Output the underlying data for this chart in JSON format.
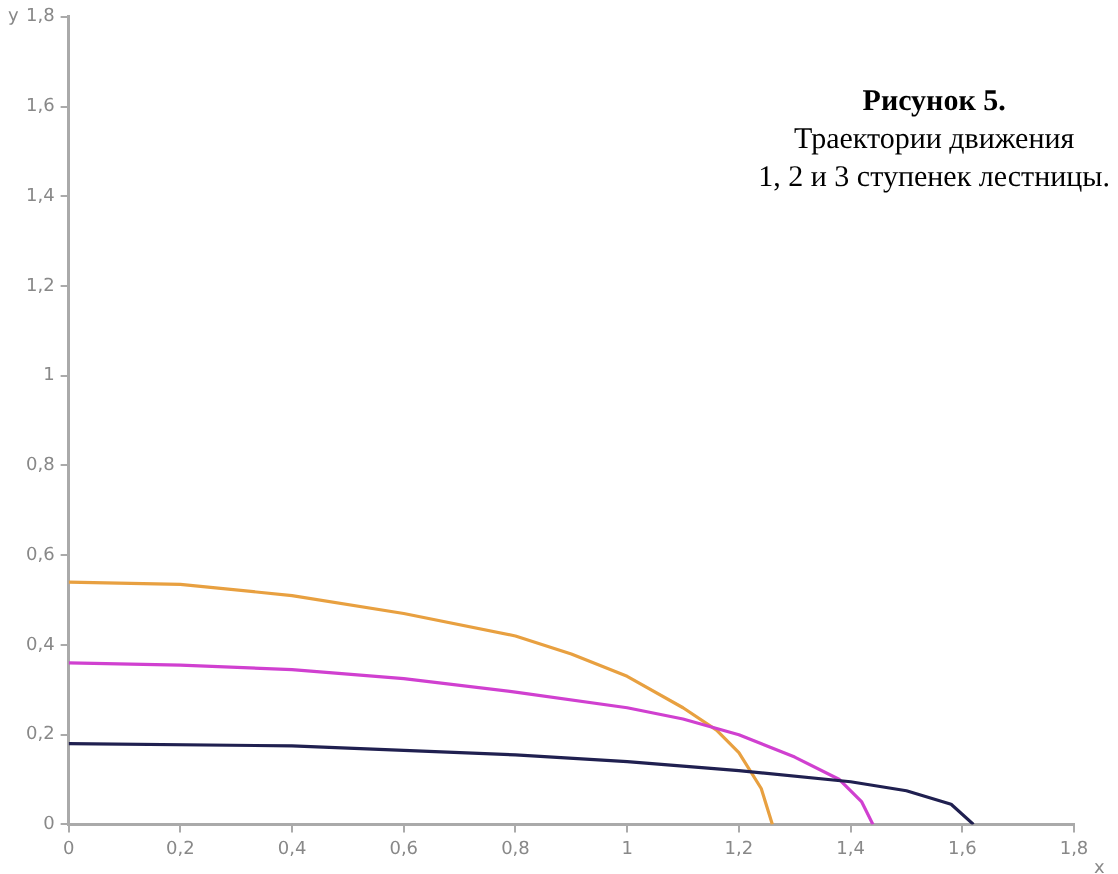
{
  "chart_data": {
    "type": "line",
    "title": "Рисунок 5.",
    "subtitle": "Траектории движения\n1, 2 и 3 ступенек лестницы.",
    "xlabel": "x",
    "ylabel": "y",
    "xlim": [
      0,
      1.8
    ],
    "ylim": [
      0,
      1.8
    ],
    "xticks": [
      0,
      {
        "value": 0.2,
        "label": "0,2"
      },
      {
        "value": 0.4,
        "label": "0,4"
      },
      {
        "value": 0.6,
        "label": "0,6"
      },
      {
        "value": 0.8,
        "label": "0,8"
      },
      1,
      {
        "value": 1.2,
        "label": "1,2"
      },
      {
        "value": 1.4,
        "label": "1,4"
      },
      {
        "value": 1.6,
        "label": "1,6"
      },
      {
        "value": 1.8,
        "label": "1,8"
      }
    ],
    "yticks": [
      0,
      {
        "value": 0.2,
        "label": "0,2"
      },
      {
        "value": 0.4,
        "label": "0,4"
      },
      {
        "value": 0.6,
        "label": "0,6"
      },
      {
        "value": 0.8,
        "label": "0,8"
      },
      1,
      {
        "value": 1.2,
        "label": "1,2"
      },
      {
        "value": 1.4,
        "label": "1,4"
      },
      {
        "value": 1.6,
        "label": "1,6"
      },
      {
        "value": 1.8,
        "label": "1,8"
      }
    ],
    "grid": false,
    "legend": false,
    "marker": "none",
    "line_style": "solid",
    "series": [
      {
        "color": "#202050",
        "x": [
          0,
          0.4,
          0.6,
          0.8,
          1.0,
          1.2,
          1.4,
          1.5,
          1.58,
          1.62
        ],
        "values": [
          0.18,
          0.175,
          0.165,
          0.155,
          0.14,
          0.12,
          0.095,
          0.075,
          0.045,
          0
        ]
      },
      {
        "color": "#d040d0",
        "x": [
          0,
          0.2,
          0.4,
          0.6,
          0.8,
          1.0,
          1.1,
          1.2,
          1.3,
          1.38,
          1.42,
          1.44
        ],
        "values": [
          0.36,
          0.355,
          0.345,
          0.325,
          0.295,
          0.26,
          0.235,
          0.2,
          0.15,
          0.1,
          0.05,
          0
        ]
      },
      {
        "color": "#e8a040",
        "x": [
          0,
          0.2,
          0.4,
          0.6,
          0.8,
          0.9,
          1.0,
          1.1,
          1.16,
          1.2,
          1.24,
          1.26
        ],
        "values": [
          0.54,
          0.535,
          0.51,
          0.47,
          0.42,
          0.38,
          0.33,
          0.26,
          0.21,
          0.16,
          0.08,
          0
        ]
      }
    ]
  }
}
